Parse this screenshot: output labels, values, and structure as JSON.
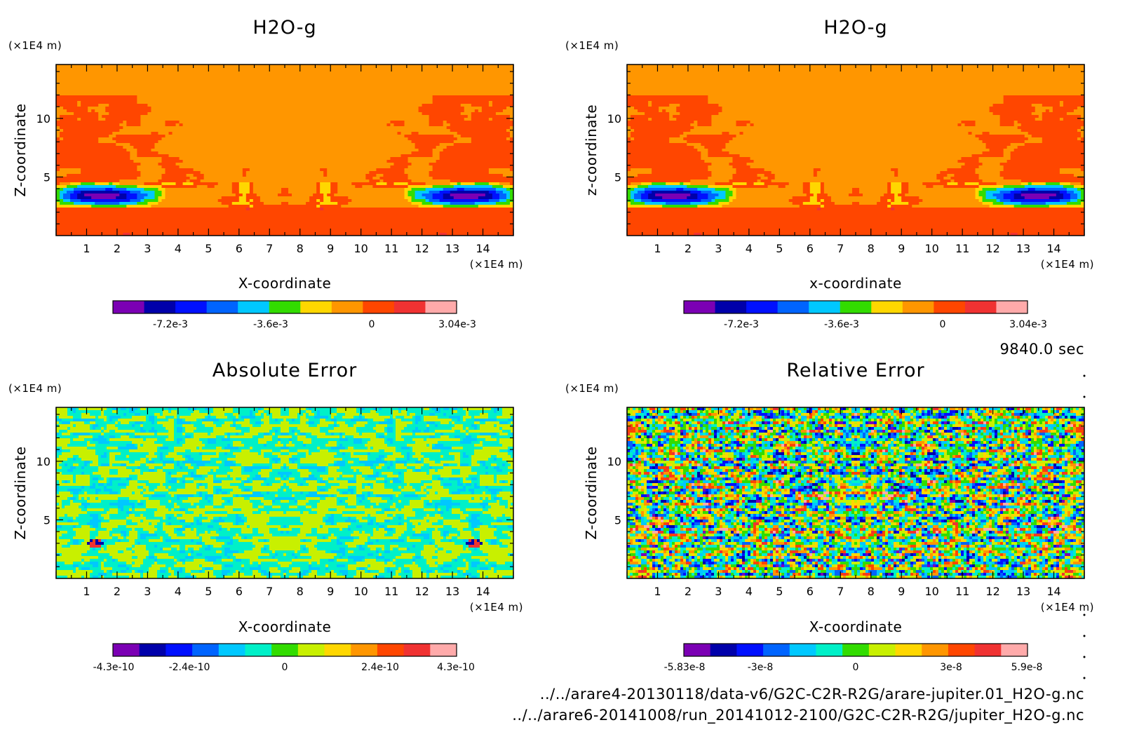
{
  "panels": [
    {
      "title": "H2O-g",
      "x_label": "X-coordinate",
      "y_label": "Z-coordinate",
      "x_unit": "(×1E4 m)",
      "y_unit": "(×1E4 m)",
      "field": "h2o",
      "colorbar": {
        "tick_labels": [
          "-7.2e-3",
          "-3.6e-3",
          "0",
          "3.04e-3"
        ]
      }
    },
    {
      "title": "H2O-g",
      "x_label": "x-coordinate",
      "y_label": "z-coordinate",
      "x_unit": "(×1E4 m)",
      "y_unit": "(×1E4 m)",
      "field": "h2o",
      "colorbar": {
        "tick_labels": [
          "-7.2e-3",
          "-3.6e-3",
          "0",
          "3.04e-3"
        ]
      }
    },
    {
      "title": "Absolute Error",
      "x_label": "X-coordinate",
      "y_label": "Z-coordinate",
      "x_unit": "(×1E4 m)",
      "y_unit": "(×1E4 m)",
      "field": "abs_error",
      "colorbar": {
        "tick_labels": [
          "-4.3e-10",
          "-2.4e-10",
          "0",
          "2.4e-10",
          "4.3e-10"
        ]
      }
    },
    {
      "title": "Relative Error",
      "x_label": "X-coordinate",
      "y_label": "Z-coordinate",
      "x_unit": "(×1E4 m)",
      "y_unit": "(×1E4 m)",
      "field": "rel_error",
      "colorbar": {
        "tick_labels": [
          "-5.83e-8",
          "-3e-8",
          "0",
          "3e-8",
          "5.9e-8"
        ]
      }
    }
  ],
  "time_label": "9840.0 sec",
  "file_paths": [
    "../../arare4-20130118/data-v6/G2C-C2R-R2G/arare-jupiter.01_H2O-g.nc",
    "../../arare6-20141008/run_20141012-2100/G2C-C2R-R2G/jupiter_H2O-g.nc"
  ],
  "colors": {
    "palette": [
      "#7b00b4",
      "#0000aa",
      "#0010ff",
      "#0064ff",
      "#00c8ff",
      "#00f0c8",
      "#32dc00",
      "#c8f000",
      "#ffd700",
      "#ff9600",
      "#ff4600",
      "#f03232",
      "#ffaaaa"
    ],
    "h2o_palette": [
      "#7b00b4",
      "#0000aa",
      "#0010ff",
      "#0064ff",
      "#00c8ff",
      "#32dc00",
      "#ffd700",
      "#ff9600",
      "#ff4600",
      "#f03232",
      "#ffaaaa"
    ],
    "background": "#ffffff",
    "axis": "#000000"
  },
  "chart_data": [
    {
      "type": "heatmap",
      "title": "H2O-g",
      "xlabel": "X-coordinate",
      "ylabel": "Z-coordinate",
      "x_ticks": [
        1,
        2,
        3,
        4,
        5,
        6,
        7,
        8,
        9,
        10,
        11,
        12,
        13,
        14
      ],
      "y_ticks": [
        5,
        10
      ],
      "xlim": [
        0,
        15
      ],
      "ylim": [
        0,
        14.6
      ],
      "units": "x1E4 m",
      "colorbar_ticks": [
        -0.0072,
        -0.0036,
        0,
        0.00304
      ],
      "color_range": [
        -0.0094,
        0.00304
      ],
      "regions": [
        {
          "z_range": [
            12,
            14.6
          ],
          "value": 0.0012,
          "description": "uniform orange above z=12"
        },
        {
          "z_range": [
            4.5,
            12
          ],
          "value": 0.0012,
          "description": "orange with red cloud filaments near x=0-4 and x=11-15"
        },
        {
          "z_range": [
            2.5,
            4.5
          ],
          "value": -0.007,
          "description": "blue cores near x=1.5 and x=13.5"
        },
        {
          "z_range": [
            0,
            2.5
          ],
          "value": 0.0025,
          "description": "mostly red lower layer"
        }
      ]
    },
    {
      "type": "heatmap",
      "title": "H2O-g",
      "xlabel": "x-coordinate",
      "ylabel": "z-coordinate",
      "x_ticks": [
        1,
        2,
        3,
        4,
        5,
        6,
        7,
        8,
        9,
        10,
        11,
        12,
        13,
        14
      ],
      "y_ticks": [
        5,
        10
      ],
      "xlim": [
        0,
        15
      ],
      "ylim": [
        0,
        14.6
      ],
      "units": "x1E4 m",
      "colorbar_ticks": [
        -0.0072,
        -0.0036,
        0,
        0.00304
      ],
      "color_range": [
        -0.0094,
        0.00304
      ]
    },
    {
      "type": "heatmap",
      "title": "Absolute Error",
      "xlabel": "X-coordinate",
      "ylabel": "Z-coordinate",
      "x_ticks": [
        1,
        2,
        3,
        4,
        5,
        6,
        7,
        8,
        9,
        10,
        11,
        12,
        13,
        14
      ],
      "y_ticks": [
        5,
        10
      ],
      "xlim": [
        0,
        15
      ],
      "ylim": [
        0,
        14.6
      ],
      "units": "x1E4 m",
      "colorbar_ticks": [
        -4.3e-10,
        -2.4e-10,
        0,
        2.4e-10,
        4.3e-10
      ],
      "color_range": [
        -4.3e-10,
        4.3e-10
      ],
      "description": "mostly cyan/yellow-green noise near zero, small hot spots near x=1.5 and x=13.5 at z=3"
    },
    {
      "type": "heatmap",
      "title": "Relative Error",
      "xlabel": "X-coordinate",
      "ylabel": "Z-coordinate",
      "x_ticks": [
        1,
        2,
        3,
        4,
        5,
        6,
        7,
        8,
        9,
        10,
        11,
        12,
        13,
        14
      ],
      "y_ticks": [
        5,
        10
      ],
      "xlim": [
        0,
        15
      ],
      "ylim": [
        0,
        14.6
      ],
      "units": "x1E4 m",
      "colorbar_ticks": [
        -5.83e-08,
        -3e-08,
        0,
        3e-08,
        5.9e-08
      ],
      "color_range": [
        -5.83e-08,
        5.9e-08
      ],
      "description": "full-range speckled noise, mirror-symmetric about x=7.5"
    }
  ]
}
